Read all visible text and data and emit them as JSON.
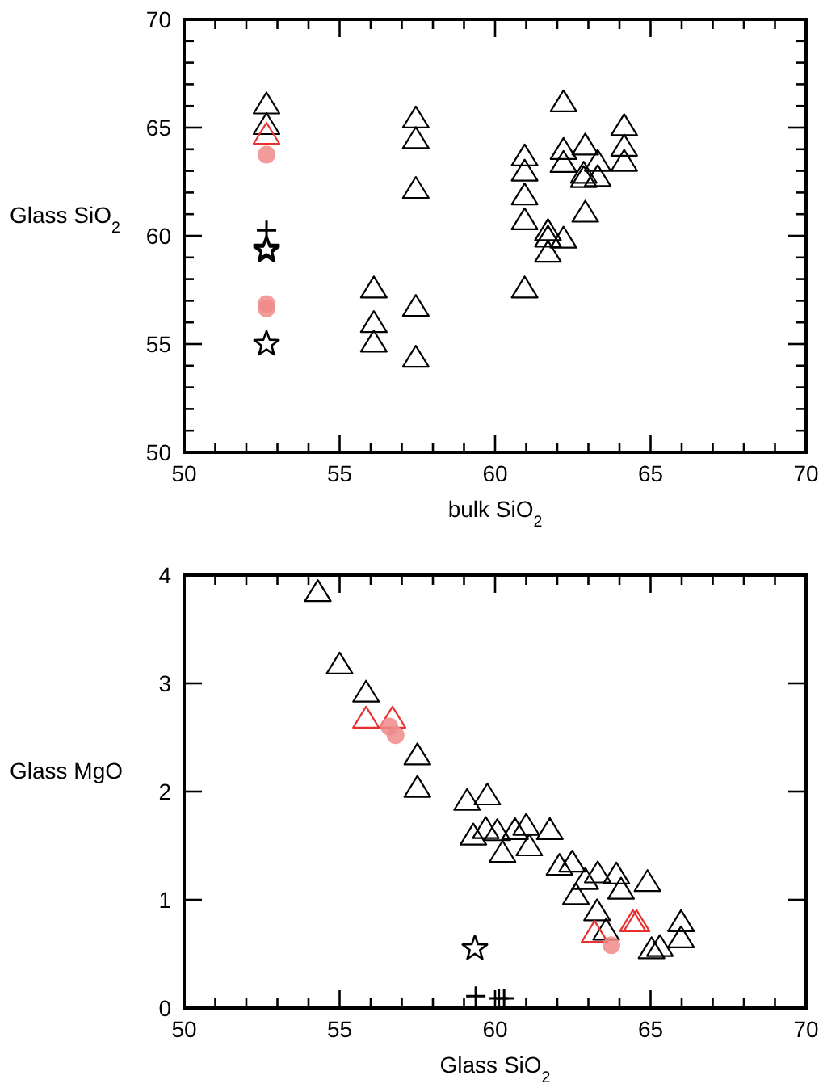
{
  "chart_data": [
    {
      "type": "scatter",
      "xlabel": "bulk SiO$_{2}$",
      "ylabel": "Glass SiO$_{2}$",
      "xlim": [
        50,
        70
      ],
      "ylim": [
        50,
        70
      ],
      "xticks": [
        50,
        {
          "value": 51,
          "label": null
        },
        {
          "value": 52,
          "label": null
        },
        {
          "value": 53,
          "label": null
        },
        {
          "value": 54,
          "label": null
        },
        55,
        {
          "value": 56,
          "label": null
        },
        {
          "value": 57,
          "label": null
        },
        {
          "value": 58,
          "label": null
        },
        {
          "value": 59,
          "label": null
        },
        60,
        {
          "value": 61,
          "label": null
        },
        {
          "value": 62,
          "label": null
        },
        {
          "value": 63,
          "label": null
        },
        {
          "value": 64,
          "label": null
        },
        65,
        {
          "value": 66,
          "label": null
        },
        {
          "value": 67,
          "label": null
        },
        {
          "value": 68,
          "label": null
        },
        {
          "value": 69,
          "label": null
        },
        70
      ],
      "yticks": [
        50,
        {
          "value": 51,
          "label": null
        },
        {
          "value": 52,
          "label": null
        },
        {
          "value": 53,
          "label": null
        },
        {
          "value": 54,
          "label": null
        },
        55,
        {
          "value": 56,
          "label": null
        },
        {
          "value": 57,
          "label": null
        },
        {
          "value": 58,
          "label": null
        },
        {
          "value": 59,
          "label": null
        },
        60,
        {
          "value": 61,
          "label": null
        },
        {
          "value": 62,
          "label": null
        },
        {
          "value": 63,
          "label": null
        },
        {
          "value": 64,
          "label": null
        },
        65,
        {
          "value": 66,
          "label": null
        },
        {
          "value": 67,
          "label": null
        },
        {
          "value": 68,
          "label": null
        },
        {
          "value": 69,
          "label": null
        },
        70
      ],
      "grid": false,
      "series": [
        {
          "color": "#000000",
          "marker": "triangle",
          "x": [
            52.65,
            52.65,
            56.1,
            56.1,
            56.1,
            57.45,
            57.45,
            57.45,
            57.45,
            57.45,
            60.95,
            60.95,
            60.95,
            60.95,
            60.95,
            62.2,
            62.2,
            62.2,
            62.2,
            61.7,
            61.7,
            61.7,
            62.9,
            62.9,
            63.3,
            63.3,
            62.85,
            62.85,
            64.15,
            64.15,
            64.15
          ],
          "values": [
            66.1,
            65.15,
            57.6,
            56.0,
            55.1,
            65.45,
            64.5,
            62.2,
            56.75,
            54.4,
            63.7,
            63.0,
            61.9,
            60.75,
            57.6,
            66.2,
            64.0,
            63.4,
            59.9,
            60.25,
            59.95,
            59.25,
            64.2,
            61.1,
            63.45,
            62.75,
            62.9,
            62.7,
            65.1,
            64.15,
            63.45
          ]
        },
        {
          "color": "#e83030",
          "marker": "triangle",
          "x": [
            52.65
          ],
          "values": [
            64.7
          ]
        },
        {
          "color": "#f08a8a",
          "marker": "circle",
          "x": [
            52.65,
            52.65,
            52.65
          ],
          "values": [
            63.75,
            56.85,
            56.65
          ]
        },
        {
          "color": "#000000",
          "marker": "cross",
          "x": [
            52.65
          ],
          "values": [
            60.25
          ]
        },
        {
          "color": "#000000",
          "marker": "star",
          "x": [
            52.65,
            52.65,
            52.65
          ],
          "values": [
            59.4,
            59.3,
            55.0
          ]
        }
      ]
    },
    {
      "type": "scatter",
      "xlabel": "Glass SiO$_{2}$",
      "ylabel": "Glass MgO",
      "xlim": [
        50,
        70
      ],
      "ylim": [
        0,
        4
      ],
      "xticks": [
        50,
        {
          "value": 51,
          "label": null
        },
        {
          "value": 52,
          "label": null
        },
        {
          "value": 53,
          "label": null
        },
        {
          "value": 54,
          "label": null
        },
        55,
        {
          "value": 56,
          "label": null
        },
        {
          "value": 57,
          "label": null
        },
        {
          "value": 58,
          "label": null
        },
        {
          "value": 59,
          "label": null
        },
        60,
        {
          "value": 61,
          "label": null
        },
        {
          "value": 62,
          "label": null
        },
        {
          "value": 63,
          "label": null
        },
        {
          "value": 64,
          "label": null
        },
        65,
        {
          "value": 66,
          "label": null
        },
        {
          "value": 67,
          "label": null
        },
        {
          "value": 68,
          "label": null
        },
        {
          "value": 69,
          "label": null
        },
        70
      ],
      "yticks": [
        0,
        1,
        2,
        3,
        4
      ],
      "grid": false,
      "series": [
        {
          "color": "#000000",
          "marker": "triangle",
          "x": [
            54.3,
            55.0,
            55.85,
            57.5,
            57.5,
            59.1,
            59.75,
            59.3,
            59.7,
            60.07,
            60.64,
            61.0,
            60.24,
            61.1,
            61.76,
            62.07,
            62.48,
            62.6,
            62.9,
            63.3,
            63.9,
            64.05,
            64.9,
            63.28,
            63.57,
            65.03,
            65.3,
            65.98,
            65.98
          ],
          "values": [
            3.85,
            3.18,
            2.92,
            2.34,
            2.04,
            1.92,
            1.97,
            1.6,
            1.66,
            1.64,
            1.65,
            1.69,
            1.44,
            1.5,
            1.65,
            1.32,
            1.35,
            1.05,
            1.19,
            1.25,
            1.24,
            1.1,
            1.17,
            0.9,
            0.72,
            0.55,
            0.57,
            0.8,
            0.65
          ]
        },
        {
          "color": "#e83030",
          "marker": "triangle",
          "x": [
            55.85,
            56.7,
            63.2,
            64.43,
            64.55
          ],
          "values": [
            2.68,
            2.68,
            0.7,
            0.8,
            0.8
          ]
        },
        {
          "color": "#f08a8a",
          "marker": "circle",
          "x": [
            56.6,
            56.8,
            63.74
          ],
          "values": [
            2.6,
            2.52,
            0.58
          ]
        },
        {
          "color": "#000000",
          "marker": "cross",
          "x": [
            59.38,
            60.12,
            60.29
          ],
          "values": [
            0.11,
            0.09,
            0.09
          ]
        },
        {
          "color": "#000000",
          "marker": "star",
          "x": [
            59.35
          ],
          "values": [
            0.55
          ]
        }
      ]
    }
  ]
}
